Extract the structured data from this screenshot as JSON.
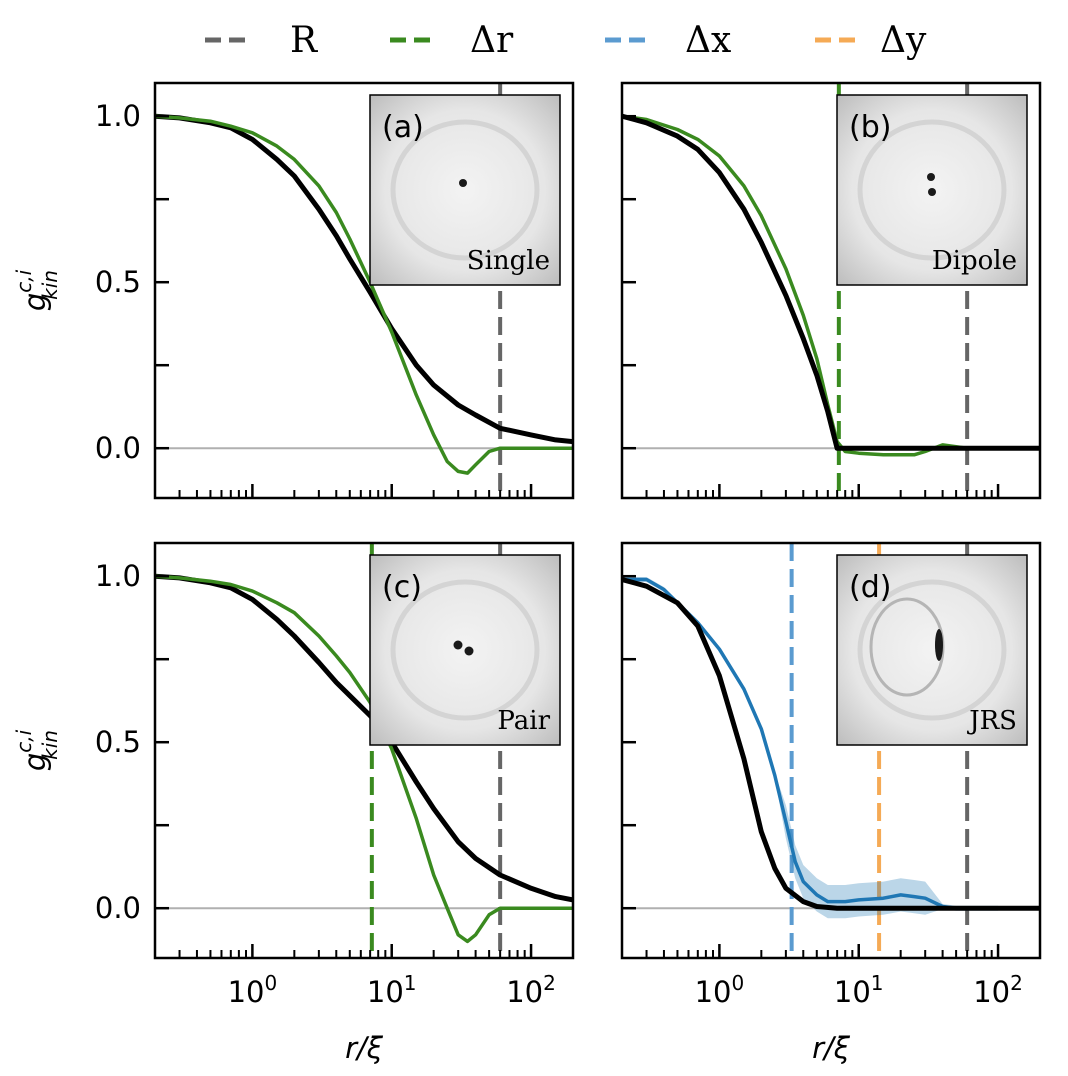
{
  "legend": [
    {
      "label": "R",
      "color": "#666666"
    },
    {
      "label": "Δr",
      "color": "#3a8a1f"
    },
    {
      "label": "Δx",
      "color": "#5b9bd0"
    },
    {
      "label": "Δy",
      "color": "#f5aa55"
    }
  ],
  "chart_data": [
    {
      "type": "line",
      "panel": "(a)",
      "inset_label": "Single",
      "ylabel": "g_kin^{c,i}",
      "xlabel": "",
      "xscale": "log",
      "xlim": [
        0.2,
        200
      ],
      "ylim": [
        -0.15,
        1.1
      ],
      "yticks": [
        "1.0",
        "0.5",
        "0.0"
      ],
      "xticks": [],
      "vlines": [
        {
          "key": "R",
          "x": 60
        }
      ],
      "series": [
        {
          "key": "black",
          "color": "#000000",
          "x": [
            0.2,
            0.3,
            0.5,
            0.7,
            1,
            1.5,
            2,
            3,
            4,
            5,
            7,
            10,
            15,
            20,
            30,
            40,
            60,
            100,
            150,
            200
          ],
          "y": [
            1.0,
            0.995,
            0.98,
            0.965,
            0.93,
            0.87,
            0.82,
            0.72,
            0.64,
            0.57,
            0.47,
            0.36,
            0.25,
            0.19,
            0.13,
            0.1,
            0.06,
            0.04,
            0.025,
            0.02
          ]
        },
        {
          "key": "green",
          "color": "#3a8a1f",
          "x": [
            0.2,
            0.3,
            0.5,
            0.7,
            1,
            1.5,
            2,
            3,
            4,
            5,
            7,
            10,
            15,
            20,
            25,
            30,
            35,
            40,
            50,
            60,
            100,
            200
          ],
          "y": [
            1.0,
            0.995,
            0.985,
            0.97,
            0.95,
            0.91,
            0.87,
            0.79,
            0.71,
            0.63,
            0.5,
            0.35,
            0.16,
            0.04,
            -0.04,
            -0.07,
            -0.075,
            -0.05,
            -0.01,
            0.0,
            0.0,
            0.0
          ]
        }
      ]
    },
    {
      "type": "line",
      "panel": "(b)",
      "inset_label": "Dipole",
      "ylabel": "",
      "xlabel": "",
      "xscale": "log",
      "xlim": [
        0.2,
        200
      ],
      "ylim": [
        -0.15,
        1.1
      ],
      "yticks": [],
      "xticks": [],
      "vlines": [
        {
          "key": "Δr",
          "x": 7.2
        },
        {
          "key": "R",
          "x": 60
        }
      ],
      "series": [
        {
          "key": "green",
          "color": "#3a8a1f",
          "x": [
            0.2,
            0.3,
            0.5,
            0.7,
            1,
            1.5,
            2,
            3,
            4,
            5,
            6,
            7,
            8,
            10,
            15,
            20,
            25,
            30,
            40,
            60,
            100,
            200
          ],
          "y": [
            1.0,
            0.99,
            0.96,
            0.93,
            0.88,
            0.79,
            0.7,
            0.54,
            0.4,
            0.27,
            0.13,
            0.02,
            -0.01,
            -0.015,
            -0.02,
            -0.02,
            -0.02,
            -0.01,
            0.01,
            0.0,
            0.0,
            0.0
          ]
        },
        {
          "key": "black",
          "color": "#000000",
          "x": [
            0.2,
            0.3,
            0.5,
            0.7,
            1,
            1.5,
            2,
            3,
            4,
            5,
            6,
            7,
            10,
            20,
            50,
            100,
            200
          ],
          "y": [
            1.0,
            0.98,
            0.94,
            0.9,
            0.83,
            0.72,
            0.62,
            0.46,
            0.33,
            0.22,
            0.11,
            0.0,
            0.0,
            0.0,
            0.0,
            0.0,
            0.0
          ]
        }
      ]
    },
    {
      "type": "line",
      "panel": "(c)",
      "inset_label": "Pair",
      "ylabel": "g_kin^{c,i}",
      "xlabel": "r/ξ",
      "xscale": "log",
      "xlim": [
        0.2,
        200
      ],
      "ylim": [
        -0.15,
        1.1
      ],
      "yticks": [
        "1.0",
        "0.5",
        "0.0"
      ],
      "xticks": [
        "10^0",
        "10^1",
        "10^2"
      ],
      "vlines": [
        {
          "key": "Δr",
          "x": 7.2
        },
        {
          "key": "R",
          "x": 60
        }
      ],
      "series": [
        {
          "key": "black",
          "color": "#000000",
          "x": [
            0.2,
            0.3,
            0.5,
            0.7,
            1,
            1.5,
            2,
            3,
            4,
            5,
            7,
            10,
            15,
            20,
            30,
            40,
            60,
            100,
            150,
            200
          ],
          "y": [
            1.0,
            0.995,
            0.98,
            0.965,
            0.93,
            0.87,
            0.82,
            0.74,
            0.68,
            0.64,
            0.58,
            0.5,
            0.38,
            0.3,
            0.2,
            0.15,
            0.1,
            0.06,
            0.035,
            0.025
          ]
        },
        {
          "key": "green",
          "color": "#3a8a1f",
          "x": [
            0.2,
            0.3,
            0.5,
            0.7,
            1,
            1.5,
            2,
            3,
            4,
            5,
            7,
            10,
            15,
            20,
            25,
            30,
            35,
            40,
            50,
            60,
            100,
            200
          ],
          "y": [
            1.0,
            0.995,
            0.985,
            0.975,
            0.955,
            0.92,
            0.89,
            0.82,
            0.76,
            0.71,
            0.62,
            0.48,
            0.27,
            0.1,
            0.0,
            -0.08,
            -0.1,
            -0.08,
            -0.02,
            0.0,
            0.0,
            0.0
          ]
        }
      ]
    },
    {
      "type": "line",
      "panel": "(d)",
      "inset_label": "JRS",
      "ylabel": "",
      "xlabel": "r/ξ",
      "xscale": "log",
      "xlim": [
        0.2,
        200
      ],
      "ylim": [
        -0.15,
        1.1
      ],
      "yticks": [],
      "xticks": [
        "10^0",
        "10^1",
        "10^2"
      ],
      "vlines": [
        {
          "key": "Δx",
          "x": 3.3
        },
        {
          "key": "Δy",
          "x": 14
        },
        {
          "key": "R",
          "x": 60
        }
      ],
      "series": [
        {
          "key": "blue",
          "color": "#1f77b4",
          "x": [
            0.2,
            0.3,
            0.4,
            0.5,
            0.7,
            1,
            1.5,
            2,
            2.5,
            3,
            3.5,
            4,
            5,
            6,
            8,
            10,
            15,
            20,
            25,
            30,
            40,
            50,
            60,
            100
          ],
          "y": [
            0.99,
            0.99,
            0.96,
            0.92,
            0.86,
            0.78,
            0.66,
            0.54,
            0.4,
            0.26,
            0.14,
            0.08,
            0.04,
            0.02,
            0.02,
            0.025,
            0.03,
            0.04,
            0.035,
            0.03,
            0.005,
            0.0,
            0.0,
            0.0
          ],
          "band": 0.05
        },
        {
          "key": "black",
          "color": "#000000",
          "x": [
            0.2,
            0.3,
            0.5,
            0.7,
            1,
            1.5,
            2,
            2.5,
            3,
            4,
            5,
            7,
            10,
            20,
            50,
            100,
            200
          ],
          "y": [
            0.99,
            0.97,
            0.92,
            0.85,
            0.7,
            0.45,
            0.23,
            0.12,
            0.06,
            0.02,
            0.005,
            0.0,
            0.0,
            0.0,
            0.0,
            0.0,
            0.0
          ]
        }
      ]
    }
  ]
}
